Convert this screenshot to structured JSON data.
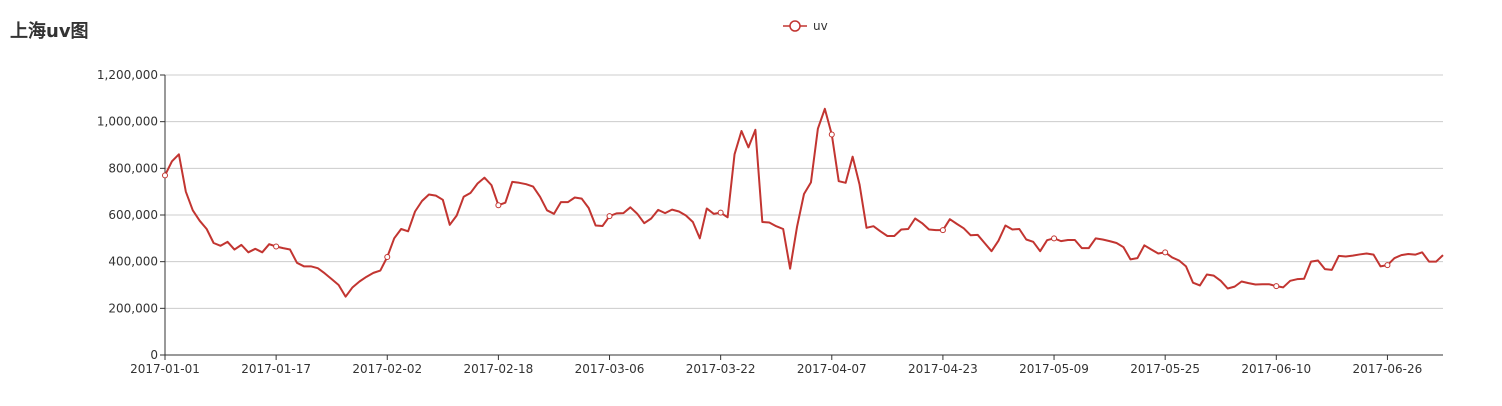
{
  "chart_data": {
    "type": "line",
    "title": "上海uv图",
    "legend": [
      "uv"
    ],
    "legend_placement": "top-center",
    "grid": "horizontal",
    "color": "#c23531",
    "x_labels": [
      "2017-01-01",
      "2017-01-17",
      "2017-02-02",
      "2017-02-18",
      "2017-03-06",
      "2017-03-22",
      "2017-04-07",
      "2017-04-23",
      "2017-05-09",
      "2017-05-25",
      "2017-06-10",
      "2017-06-26"
    ],
    "x_start": "2017-01-01",
    "x_end": "2017-07-04",
    "y_ticks": [
      "0",
      "200,000",
      "400,000",
      "600,000",
      "800,000",
      "1,000,000",
      "1,200,000"
    ],
    "ylim": [
      0,
      1200000
    ],
    "series": [
      {
        "name": "uv",
        "values": [
          770000,
          830000,
          860000,
          700000,
          620000,
          575000,
          540000,
          480000,
          468000,
          485000,
          452000,
          472000,
          440000,
          455000,
          440000,
          475000,
          465000,
          458000,
          452000,
          395000,
          380000,
          380000,
          372000,
          350000,
          325000,
          300000,
          250000,
          290000,
          315000,
          335000,
          352000,
          362000,
          420000,
          500000,
          540000,
          530000,
          615000,
          660000,
          688000,
          683000,
          665000,
          558000,
          598000,
          678000,
          695000,
          735000,
          760000,
          728000,
          642000,
          653000,
          742000,
          738000,
          732000,
          722000,
          678000,
          620000,
          605000,
          655000,
          655000,
          675000,
          670000,
          630000,
          555000,
          553000,
          595000,
          607000,
          608000,
          633000,
          605000,
          565000,
          585000,
          622000,
          608000,
          623000,
          615000,
          598000,
          570000,
          500000,
          628000,
          605000,
          610000,
          590000,
          860000,
          960000,
          890000,
          965000,
          570000,
          568000,
          552000,
          540000,
          370000,
          550000,
          690000,
          740000,
          970000,
          1055000,
          945000,
          745000,
          738000,
          850000,
          730000,
          545000,
          552000,
          530000,
          510000,
          510000,
          538000,
          540000,
          585000,
          565000,
          538000,
          535000,
          535000,
          582000,
          562000,
          543000,
          513000,
          515000,
          480000,
          445000,
          490000,
          555000,
          538000,
          540000,
          495000,
          485000,
          445000,
          492000,
          500000,
          488000,
          493000,
          493000,
          458000,
          458000,
          500000,
          495000,
          488000,
          480000,
          462000,
          410000,
          415000,
          470000,
          452000,
          435000,
          440000,
          418000,
          405000,
          380000,
          310000,
          298000,
          345000,
          340000,
          318000,
          285000,
          293000,
          315000,
          308000,
          302000,
          303000,
          303000,
          295000,
          290000,
          318000,
          325000,
          327000,
          400000,
          405000,
          368000,
          365000,
          425000,
          422000,
          426000,
          431000,
          435000,
          430000,
          380000,
          385000,
          415000,
          428000,
          433000,
          430000,
          440000,
          400000,
          400000,
          428000
        ]
      }
    ]
  }
}
